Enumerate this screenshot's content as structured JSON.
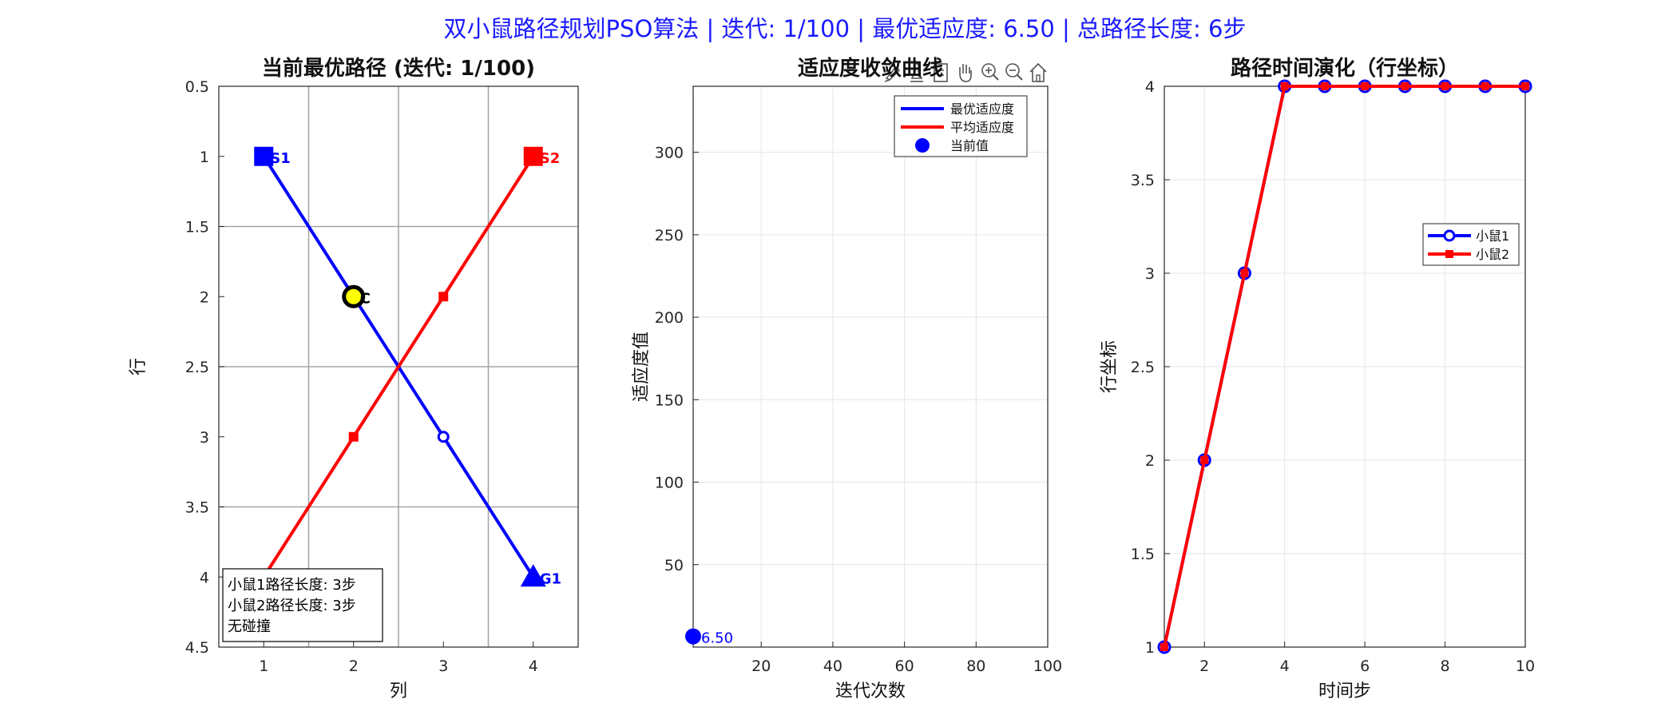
{
  "figure": {
    "title": "双小鼠路径规划PSO算法 | 迭代: 1/100 | 最优适应度: 6.50 | 总路径长度: 6步",
    "title_color": "#1a1aff"
  },
  "colors": {
    "mouse1": "#0000ff",
    "mouse2": "#ff0000",
    "collision_fill": "#ffff00",
    "grid_line": "#a6a6a6",
    "axis": "#262626"
  },
  "toolbar": {
    "icons": [
      "brush-icon",
      "datatip-icon",
      "legend-toggle-icon",
      "pan-icon",
      "zoom-in-icon",
      "zoom-out-icon",
      "home-icon"
    ]
  },
  "chart_data": [
    {
      "type": "line",
      "title": "当前最优路径 (迭代: 1/100)",
      "xlabel": "列",
      "ylabel": "行",
      "xlim": [
        0.5,
        4.5
      ],
      "ylim": [
        0.5,
        4.5
      ],
      "y_reversed": true,
      "xticks": [
        "1",
        "2",
        "3",
        "4"
      ],
      "yticks": [
        "0.5",
        "1",
        "1.5",
        "2",
        "2.5",
        "3",
        "3.5",
        "4",
        "4.5"
      ],
      "grid": "major lines at 1.5, 2.5, 3.5",
      "series": [
        {
          "x": [
            1,
            2,
            3,
            4
          ],
          "y": [
            1,
            2,
            3,
            4
          ]
        },
        {
          "x": [
            1,
            2,
            3,
            4
          ],
          "y": [
            4,
            3,
            2,
            1
          ]
        }
      ],
      "markers": [
        {
          "label": "S1",
          "x": 1,
          "y": 1,
          "shape": "square",
          "series": 0
        },
        {
          "label": "G1",
          "x": 4,
          "y": 4,
          "shape": "triangle",
          "series": 0
        },
        {
          "label": "S2",
          "x": 4,
          "y": 1,
          "shape": "square",
          "series": 1
        },
        {
          "label": "C",
          "x": 2,
          "y": 2,
          "shape": "circle",
          "series": -1
        }
      ],
      "info_box": [
        "小鼠1路径长度: 3步",
        "小鼠2路径长度: 3步",
        "无碰撞"
      ]
    },
    {
      "type": "line",
      "title": "适应度收敛曲线",
      "xlabel": "迭代次数",
      "ylabel": "适应度值",
      "xlim": [
        1,
        100
      ],
      "ylim": [
        0,
        340
      ],
      "xticks": [
        20,
        40,
        60,
        80,
        100
      ],
      "yticks": [
        50,
        100,
        150,
        200,
        250,
        300
      ],
      "grid": true,
      "legend_position": "top-right",
      "series": [
        {
          "name": "最优适应度",
          "x": [
            1
          ],
          "y": [
            6.5
          ]
        },
        {
          "name": "平均适应度",
          "x": [
            1
          ],
          "y": [
            6.5
          ]
        },
        {
          "name": "当前值",
          "x": [
            1
          ],
          "y": [
            6.5
          ]
        }
      ],
      "annotation": "6.50"
    },
    {
      "type": "line",
      "title": "路径时间演化（行坐标）",
      "xlabel": "时间步",
      "ylabel": "行坐标",
      "xlim": [
        1,
        10
      ],
      "ylim": [
        1,
        4
      ],
      "xticks": [
        2,
        4,
        6,
        8,
        10
      ],
      "yticks": [
        "1",
        "1.5",
        "2",
        "2.5",
        "3",
        "3.5",
        "4"
      ],
      "grid": true,
      "legend_position": "right",
      "series": [
        {
          "name": "小鼠1",
          "x": [
            1,
            2,
            3,
            4,
            5,
            6,
            7,
            8,
            9,
            10
          ],
          "y": [
            1,
            2,
            3,
            4,
            4,
            4,
            4,
            4,
            4,
            4
          ]
        },
        {
          "name": "小鼠2",
          "x": [
            1,
            2,
            3,
            4,
            5,
            6,
            7,
            8,
            9,
            10
          ],
          "y": [
            1,
            2,
            3,
            4,
            4,
            4,
            4,
            4,
            4,
            4
          ]
        }
      ]
    }
  ]
}
